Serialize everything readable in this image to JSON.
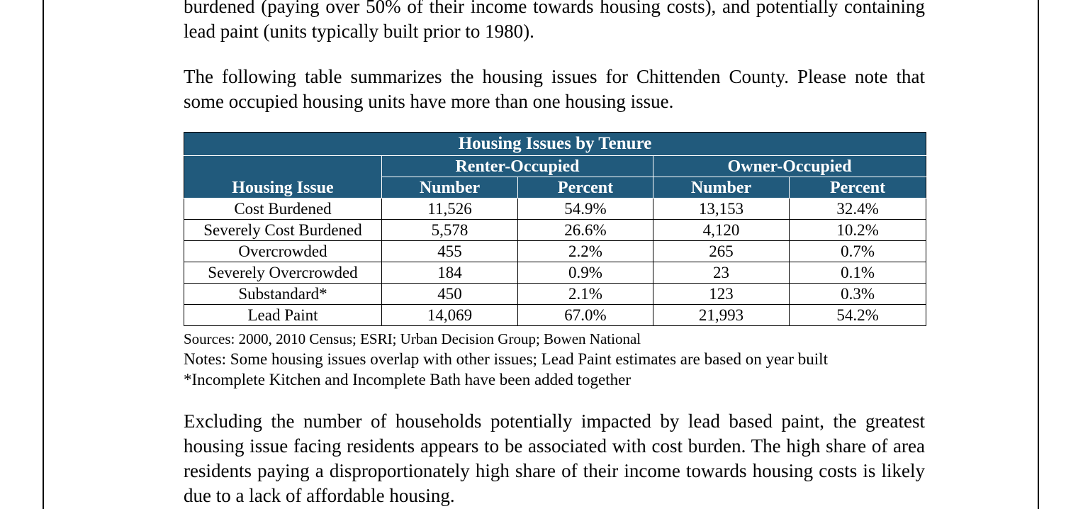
{
  "paragraphs": {
    "intro": "burdened (paying over 50% of their income towards housing costs), and potentially containing lead paint (units typically built prior to 1980).",
    "table_lead": "The following table summarizes the housing issues for Chittenden County.  Please note that some occupied housing units have more than one housing issue.",
    "conclusion": "Excluding the number of households potentially impacted by lead based paint, the greatest housing issue facing residents appears to be associated with cost burden.  The high share of area residents paying a disproportionately high share of their income towards housing costs is likely due to a lack of affordable housing."
  },
  "table": {
    "title": "Housing Issues by Tenure",
    "group_renter": "Renter-Occupied",
    "group_owner": "Owner-Occupied",
    "col_issue": "Housing Issue",
    "col_renter_number": "Number",
    "col_renter_percent": "Percent",
    "col_owner_number": "Number",
    "col_owner_percent": "Percent",
    "rows": [
      {
        "issue": "Cost Burdened",
        "renter_number": "11,526",
        "renter_percent": "54.9%",
        "owner_number": "13,153",
        "owner_percent": "32.4%"
      },
      {
        "issue": "Severely Cost Burdened",
        "renter_number": "5,578",
        "renter_percent": "26.6%",
        "owner_number": "4,120",
        "owner_percent": "10.2%"
      },
      {
        "issue": "Overcrowded",
        "renter_number": "455",
        "renter_percent": "2.2%",
        "owner_number": "265",
        "owner_percent": "0.7%"
      },
      {
        "issue": "Severely Overcrowded",
        "renter_number": "184",
        "renter_percent": "0.9%",
        "owner_number": "23",
        "owner_percent": "0.1%"
      },
      {
        "issue": "Substandard*",
        "renter_number": "450",
        "renter_percent": "2.1%",
        "owner_number": "123",
        "owner_percent": "0.3%"
      },
      {
        "issue": "Lead Paint",
        "renter_number": "14,069",
        "renter_percent": "67.0%",
        "owner_number": "21,993",
        "owner_percent": "54.2%"
      }
    ]
  },
  "notes": {
    "sources": "Sources:  2000, 2010 Census; ESRI; Urban Decision Group; Bowen National",
    "notes": "Notes: Some housing issues overlap with other issues; Lead Paint estimates are based on year built",
    "footnote": "*Incomplete Kitchen and Incomplete Bath have been added together"
  },
  "colors": {
    "header_fill": "#215a7c",
    "header_text": "#ffffff"
  }
}
